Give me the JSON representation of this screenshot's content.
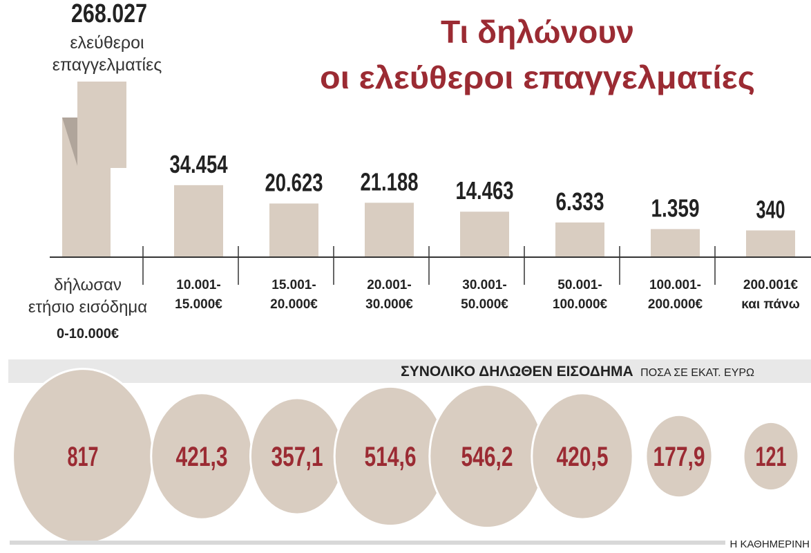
{
  "title_line1": "Τι δηλώνουν",
  "title_line2": "οι ελεύθεροι επαγγελματίες",
  "total": {
    "value": "268.027",
    "label_line1": "ελεύθεροι",
    "label_line2": "επαγγελματίες"
  },
  "first_category_text": {
    "line1": "δήλωσαν",
    "line2": "ετήσιο εισόδημα",
    "line3": "0-10.000€"
  },
  "income_header": {
    "bold": "ΣΥΝΟΛΙΚΟ ΔΗΛΩΘΕΝ ΕΙΣΟΔΗΜΑ",
    "unit": "ΠΟΣΑ ΣΕ ΕΚΑΤ. ΕΥΡΩ"
  },
  "source": "Η ΚΑΘΗΜΕΡΙΝΗ",
  "colors": {
    "title": "#9b2b33",
    "bar": "#d9cdc1",
    "bar_shadow": "#b0a59b",
    "bubble_text": "#9b2b33",
    "band": "#e8e8e8"
  },
  "chart_data": [
    {
      "type": "bar",
      "categories": [
        "0-10.000€",
        "10.001-15.000€",
        "15.001-20.000€",
        "20.001-30.000€",
        "30.001-50.000€",
        "50.001-100.000€",
        "100.001-200.000€",
        "200.001€ και πάνω"
      ],
      "category_lines": [
        [
          "0-10.000€"
        ],
        [
          "10.001-",
          "15.000€"
        ],
        [
          "15.001-",
          "20.000€"
        ],
        [
          "20.001-",
          "30.000€"
        ],
        [
          "30.001-",
          "50.000€"
        ],
        [
          "50.001-",
          "100.000€"
        ],
        [
          "100.001-",
          "200.000€"
        ],
        [
          "200.001€",
          "και πάνω"
        ]
      ],
      "values": [
        268027,
        34454,
        20623,
        21188,
        14463,
        6333,
        1359,
        340
      ],
      "value_labels": [
        "268.027",
        "34.454",
        "20.623",
        "21.188",
        "14.463",
        "6.333",
        "1.359",
        "340"
      ],
      "broken_axis_first_bar": true
    },
    {
      "type": "bubble",
      "title": "ΣΥΝΟΛΙΚΟ ΔΗΛΩΘΕΝ ΕΙΣΟΔΗΜΑ",
      "unit": "ΠΟΣΑ ΣΕ ΕΚΑΤ. ΕΥΡΩ",
      "categories": [
        "0-10.000€",
        "10.001-15.000€",
        "15.001-20.000€",
        "20.001-30.000€",
        "30.001-50.000€",
        "50.001-100.000€",
        "100.001-200.000€",
        "200.001€ και πάνω"
      ],
      "values": [
        817,
        421.3,
        357.1,
        514.6,
        546.2,
        420.5,
        177.9,
        121
      ],
      "value_labels": [
        "817",
        "421,3",
        "357,1",
        "514,6",
        "546,2",
        "420,5",
        "177,9",
        "121"
      ]
    }
  ]
}
